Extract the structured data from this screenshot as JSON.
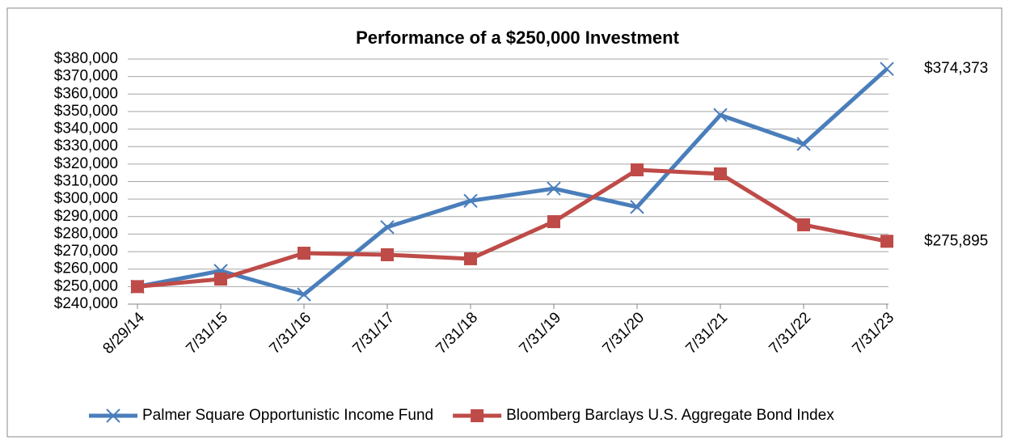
{
  "chart_data": {
    "type": "line",
    "title": "Performance of a $250,000 Investment",
    "categories": [
      "8/29/14",
      "7/31/15",
      "7/31/16",
      "7/31/17",
      "7/31/18",
      "7/31/19",
      "7/31/20",
      "7/31/21",
      "7/31/22",
      "7/31/23"
    ],
    "series": [
      {
        "name": "Palmer Square Opportunistic Income Fund",
        "color": "#4a7ebb",
        "marker": "x",
        "values": [
          250000,
          259000,
          245500,
          284000,
          299000,
          306000,
          295500,
          348000,
          331500,
          374373
        ],
        "value_labels": [
          null,
          null,
          null,
          null,
          null,
          null,
          null,
          null,
          null,
          "$374,373"
        ]
      },
      {
        "name": "Bloomberg Barclays U.S. Aggregate Bond Index",
        "color": "#be4b48",
        "marker": "square",
        "values": [
          250000,
          254300,
          269100,
          268200,
          265900,
          287100,
          316700,
          314400,
          285300,
          275895
        ],
        "value_labels": [
          null,
          null,
          null,
          null,
          null,
          null,
          null,
          null,
          null,
          "$275,895"
        ]
      }
    ],
    "ylim": [
      240000,
      380000
    ],
    "yticks": [
      {
        "value": 240000,
        "label": "$240,000"
      },
      {
        "value": 250000,
        "label": "$250,000"
      },
      {
        "value": 260000,
        "label": "$260,000"
      },
      {
        "value": 270000,
        "label": "$270,000"
      },
      {
        "value": 280000,
        "label": "$280,000"
      },
      {
        "value": 290000,
        "label": "$290,000"
      },
      {
        "value": 300000,
        "label": "$300,000"
      },
      {
        "value": 310000,
        "label": "$310,000"
      },
      {
        "value": 320000,
        "label": "$320,000"
      },
      {
        "value": 330000,
        "label": "$330,000"
      },
      {
        "value": 340000,
        "label": "$340,000"
      },
      {
        "value": 350000,
        "label": "$350,000"
      },
      {
        "value": 360000,
        "label": "$360,000"
      },
      {
        "value": 370000,
        "label": "$370,000"
      },
      {
        "value": 380000,
        "label": "$380,000"
      }
    ],
    "grid": true,
    "legend": "bottom"
  }
}
